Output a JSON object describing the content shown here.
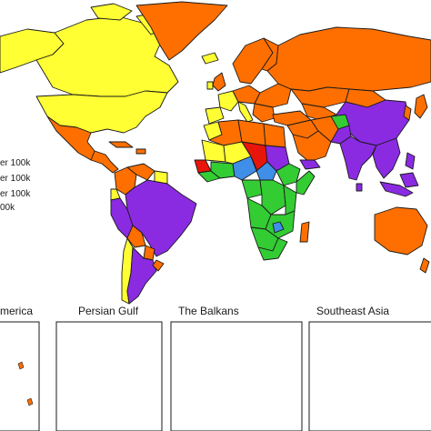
{
  "legend": {
    "items": [
      "er 100k",
      "er 100k",
      "er 100k",
      "00k"
    ]
  },
  "insets": [
    {
      "title": "merica"
    },
    {
      "title": "Persian Gulf"
    },
    {
      "title": "The Balkans"
    },
    {
      "title": "Southeast Asia"
    }
  ],
  "colors": {
    "orange": "#FF6F00",
    "yellow": "#FFFF33",
    "purple": "#8A2BE2",
    "green": "#33CC33",
    "blue": "#3F8FE8",
    "red": "#E8150B",
    "border": "#1a1a1a",
    "background": "#ffffff"
  }
}
